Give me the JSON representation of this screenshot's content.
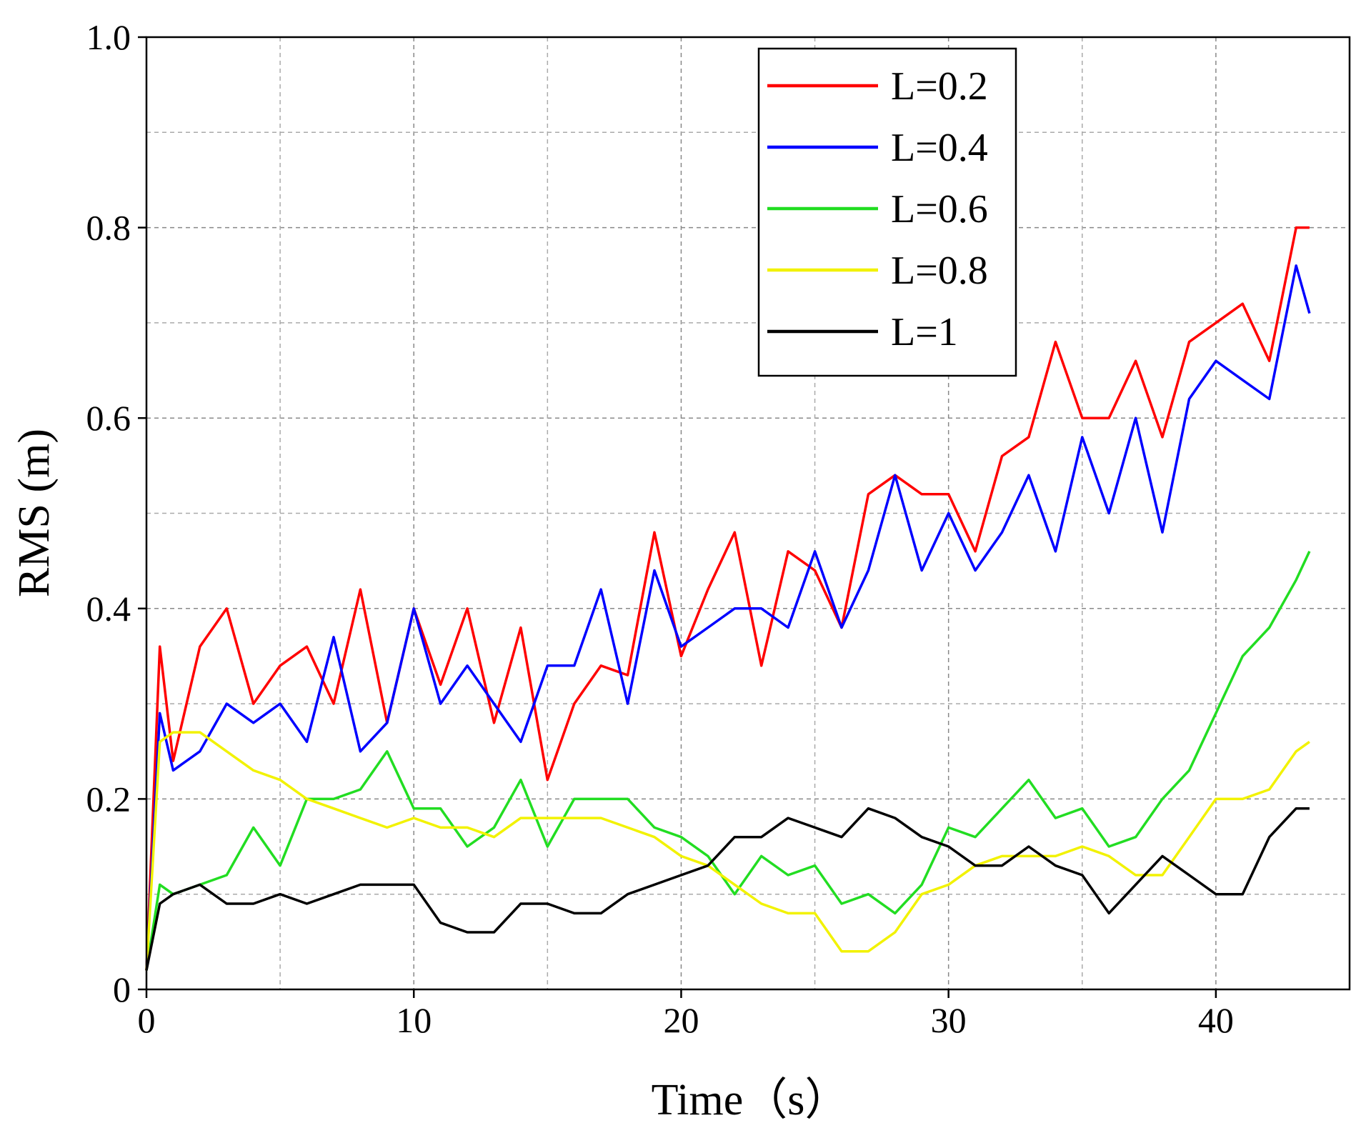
{
  "chart_data": {
    "type": "line",
    "xlabel": "Time（s）",
    "ylabel": "RMS (m)",
    "x": [
      0,
      0.5,
      1,
      2,
      3,
      4,
      5,
      6,
      7,
      8,
      9,
      10,
      11,
      12,
      13,
      14,
      15,
      16,
      17,
      18,
      19,
      20,
      21,
      22,
      23,
      24,
      25,
      26,
      27,
      28,
      29,
      30,
      31,
      32,
      33,
      34,
      35,
      36,
      37,
      38,
      39,
      40,
      41,
      42,
      43,
      43.5
    ],
    "series": [
      {
        "name": "L=0.2",
        "color": "#ff0000",
        "values": [
          0.02,
          0.36,
          0.24,
          0.36,
          0.4,
          0.3,
          0.34,
          0.36,
          0.3,
          0.42,
          0.28,
          0.4,
          0.32,
          0.4,
          0.28,
          0.38,
          0.22,
          0.3,
          0.34,
          0.33,
          0.48,
          0.35,
          0.42,
          0.48,
          0.34,
          0.46,
          0.44,
          0.38,
          0.52,
          0.54,
          0.52,
          0.52,
          0.46,
          0.56,
          0.58,
          0.68,
          0.6,
          0.6,
          0.66,
          0.58,
          0.68,
          0.7,
          0.72,
          0.66,
          0.8,
          0.8
        ]
      },
      {
        "name": "L=0.4",
        "color": "#0000ff",
        "values": [
          0.02,
          0.29,
          0.23,
          0.25,
          0.3,
          0.28,
          0.3,
          0.26,
          0.37,
          0.25,
          0.28,
          0.4,
          0.3,
          0.34,
          0.3,
          0.26,
          0.34,
          0.34,
          0.42,
          0.3,
          0.44,
          0.36,
          0.38,
          0.4,
          0.4,
          0.38,
          0.46,
          0.38,
          0.44,
          0.54,
          0.44,
          0.5,
          0.44,
          0.48,
          0.54,
          0.46,
          0.58,
          0.5,
          0.6,
          0.48,
          0.62,
          0.66,
          0.64,
          0.62,
          0.76,
          0.71
        ]
      },
      {
        "name": "L=0.6",
        "color": "#22dd22",
        "values": [
          0.02,
          0.11,
          0.1,
          0.11,
          0.12,
          0.17,
          0.13,
          0.2,
          0.2,
          0.21,
          0.25,
          0.19,
          0.19,
          0.15,
          0.17,
          0.22,
          0.15,
          0.2,
          0.2,
          0.2,
          0.17,
          0.16,
          0.14,
          0.1,
          0.14,
          0.12,
          0.13,
          0.09,
          0.1,
          0.08,
          0.11,
          0.17,
          0.16,
          0.19,
          0.22,
          0.18,
          0.19,
          0.15,
          0.16,
          0.2,
          0.23,
          0.29,
          0.35,
          0.38,
          0.43,
          0.46
        ]
      },
      {
        "name": "L=0.8",
        "color": "#f2f200",
        "values": [
          0.02,
          0.26,
          0.27,
          0.27,
          0.25,
          0.23,
          0.22,
          0.2,
          0.19,
          0.18,
          0.17,
          0.18,
          0.17,
          0.17,
          0.16,
          0.18,
          0.18,
          0.18,
          0.18,
          0.17,
          0.16,
          0.14,
          0.13,
          0.11,
          0.09,
          0.08,
          0.08,
          0.04,
          0.04,
          0.06,
          0.1,
          0.11,
          0.13,
          0.14,
          0.14,
          0.14,
          0.15,
          0.14,
          0.12,
          0.12,
          0.16,
          0.2,
          0.2,
          0.21,
          0.25,
          0.26
        ]
      },
      {
        "name": "L=1",
        "color": "#000000",
        "values": [
          0.02,
          0.09,
          0.1,
          0.11,
          0.09,
          0.09,
          0.1,
          0.09,
          0.1,
          0.11,
          0.11,
          0.11,
          0.07,
          0.06,
          0.06,
          0.09,
          0.09,
          0.08,
          0.08,
          0.1,
          0.11,
          0.12,
          0.13,
          0.16,
          0.16,
          0.18,
          0.17,
          0.16,
          0.19,
          0.18,
          0.16,
          0.15,
          0.13,
          0.13,
          0.15,
          0.13,
          0.12,
          0.08,
          0.11,
          0.14,
          0.12,
          0.1,
          0.1,
          0.16,
          0.19,
          0.19
        ]
      }
    ],
    "xlim": [
      0,
      45
    ],
    "ylim": [
      0,
      1
    ],
    "xticks": [
      0,
      10,
      20,
      30,
      40
    ],
    "yticks": [
      0,
      0.2,
      0.4,
      0.6,
      0.8,
      {
        "value": 1,
        "label": "1.0"
      }
    ],
    "xminorticks": [
      5,
      15,
      25,
      35
    ],
    "yminorticks": [
      0.1,
      0.3,
      0.5,
      0.7,
      0.9
    ],
    "grid": true,
    "legend": "upper right"
  }
}
